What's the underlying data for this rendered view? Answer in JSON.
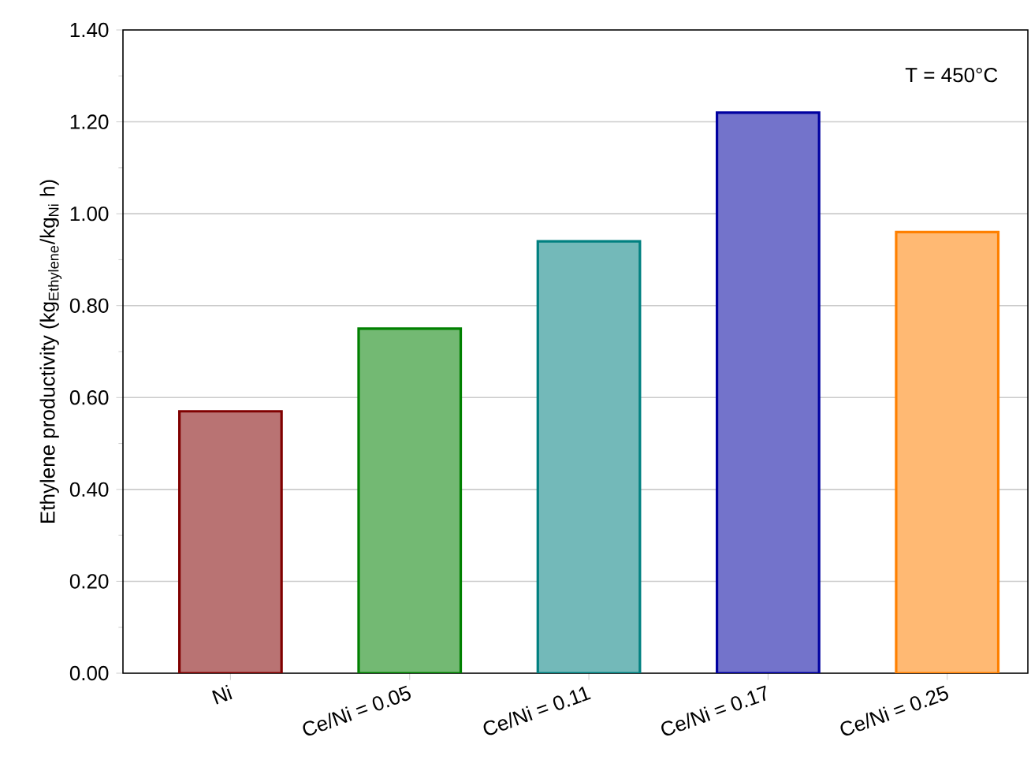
{
  "chart_data": {
    "type": "bar",
    "ylabel": "Ethylene productivity (kg$_{Ethylene}$/kg$_{Ni}$ h)",
    "categories": [
      "Ni",
      "Ce/Ni = 0.05",
      "Ce/Ni = 0.11",
      "Ce/Ni = 0.17",
      "Ce/Ni = 0.25"
    ],
    "values": [
      0.57,
      0.75,
      0.94,
      1.22,
      0.96
    ],
    "colors": [
      "#800000",
      "#008000",
      "#008080",
      "#0000a0",
      "#ff8000"
    ],
    "ylim": [
      0,
      1.4
    ],
    "yticks": [
      {
        "value": 0,
        "label": "0.00"
      },
      {
        "value": 0.2,
        "label": "0.20"
      },
      {
        "value": 0.4,
        "label": "0.40"
      },
      {
        "value": 0.6,
        "label": "0.60"
      },
      {
        "value": 0.8,
        "label": "0.80"
      },
      {
        "value": 1.0,
        "label": "1.00"
      },
      {
        "value": 1.2,
        "label": "1.20"
      },
      {
        "value": 1.4,
        "label": "1.40"
      }
    ],
    "grid": "y",
    "annotations": [
      "T = 450°C"
    ]
  }
}
